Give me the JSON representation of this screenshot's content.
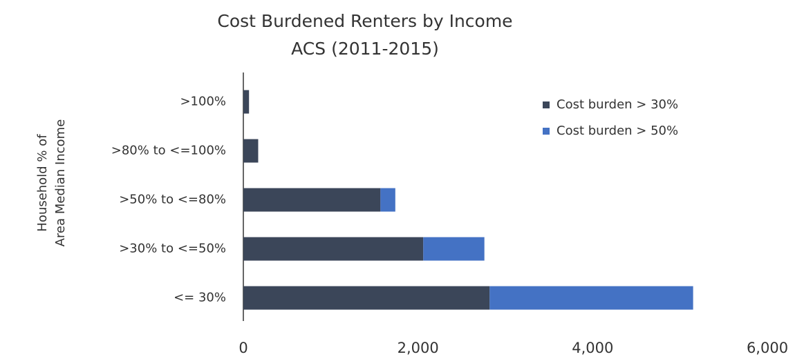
{
  "chart_data": {
    "type": "stacked-bar-horizontal",
    "title": "Cost Burdened Renters by Income",
    "subtitle": "ACS (2011-2015)",
    "y_label": [
      "Household % of",
      "Area Median Income"
    ],
    "categories": [
      ">100%",
      ">80% to <=100%",
      ">50% to <=80%",
      ">30% to <=50%",
      "<= 30%"
    ],
    "series": [
      {
        "name": "Cost burden > 30%",
        "color": "#3b4659",
        "values": [
          65,
          170,
          1570,
          2060,
          2820
        ]
      },
      {
        "name": "Cost burden > 50%",
        "color": "#4472c4",
        "values": [
          0,
          0,
          170,
          700,
          2330
        ]
      }
    ],
    "xlim": [
      0,
      6000
    ],
    "xticks": [
      0,
      {
        "value": 2000,
        "label": "2,000"
      },
      {
        "value": 4000,
        "label": "4,000"
      },
      {
        "value": 6000,
        "label": "6,000"
      }
    ],
    "grid": false,
    "legend": "upper right"
  }
}
